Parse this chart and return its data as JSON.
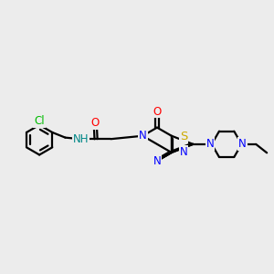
{
  "background_color": "#ececec",
  "atom_colors": {
    "C": "#000000",
    "N": "#0000ff",
    "O": "#ff0000",
    "S": "#ccaa00",
    "Cl": "#00bb00",
    "H": "#008888"
  },
  "bond_color": "#000000",
  "bond_width": 1.6,
  "font_size": 8.5,
  "figsize": [
    3.0,
    3.0
  ],
  "dpi": 100,
  "xlim": [
    0.0,
    9.5
  ],
  "ylim": [
    2.2,
    5.8
  ]
}
